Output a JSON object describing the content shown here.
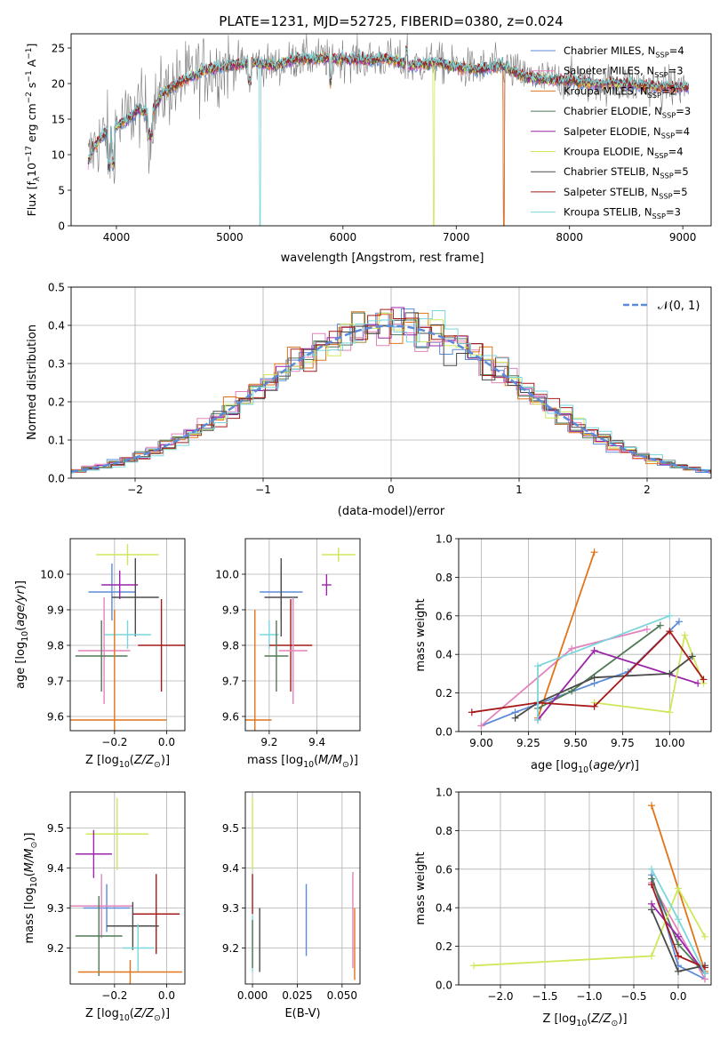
{
  "figure_title": "PLATE=1231, MJD=52725, FIBERID=0380, z=0.024",
  "colors": {
    "Chabrier MILES": "#5b8bd8",
    "Salpeter MILES": "#e383bc",
    "Kroupa MILES": "#e1741b",
    "Chabrier ELODIE": "#4e7a57",
    "Salpeter ELODIE": "#9b24a8",
    "Kroupa ELODIE": "#cde85a",
    "Chabrier STELIB": "#4b4b4b",
    "Salpeter STELIB": "#a61a1a",
    "Kroupa STELIB": "#7ad6dc"
  },
  "chart_data": [
    {
      "id": "spectrum",
      "type": "line",
      "title": "PLATE=1231, MJD=52725, FIBERID=0380, z=0.024",
      "xlabel": "wavelength [Angstrom, rest frame]",
      "ylabel": "Flux [f",
      "xlim": [
        3600,
        9250
      ],
      "ylim": [
        0,
        27
      ],
      "xticks": [
        "4000",
        "5000",
        "6000",
        "7000",
        "8000",
        "9000"
      ],
      "yticks": [
        "0",
        "5",
        "10",
        "15",
        "20",
        "25"
      ],
      "legend_position": "top-right",
      "legend": [
        {
          "name": "Chabrier MILES",
          "nssp": "4"
        },
        {
          "name": "Salpeter MILES",
          "nssp": "3"
        },
        {
          "name": "Kroupa MILES",
          "nssp": "2"
        },
        {
          "name": "Chabrier ELODIE",
          "nssp": "3"
        },
        {
          "name": "Salpeter ELODIE",
          "nssp": "4"
        },
        {
          "name": "Kroupa ELODIE",
          "nssp": "4"
        },
        {
          "name": "Chabrier STELIB",
          "nssp": "5"
        },
        {
          "name": "Salpeter STELIB",
          "nssp": "5"
        },
        {
          "name": "Kroupa STELIB",
          "nssp": "3"
        }
      ],
      "continuum": {
        "x": [
          3750,
          3800,
          3900,
          4000,
          4100,
          4200,
          4300,
          4400,
          4600,
          4800,
          5000,
          5200,
          5400,
          5600,
          5800,
          6000,
          6200,
          6400,
          6600,
          6800,
          7000,
          7200,
          7400,
          7600,
          7800,
          8000,
          8200,
          8400,
          8600,
          8800,
          9000
        ],
        "y": [
          9,
          11,
          13,
          14,
          15,
          16.5,
          15.5,
          18.5,
          20.5,
          22,
          22.5,
          23,
          22.5,
          23.5,
          23.5,
          23.5,
          23.3,
          23.5,
          22.5,
          23,
          22.3,
          22,
          22.5,
          21,
          20.5,
          20.5,
          20,
          20,
          19.8,
          19.5,
          19.5
        ]
      },
      "model_cutoffs": [
        {
          "name": "Chabrier MILES",
          "x": 7420
        },
        {
          "name": "Salpeter MILES",
          "x": 7420
        },
        {
          "name": "Kroupa MILES",
          "x": 7420
        },
        {
          "name": "Kroupa ELODIE",
          "x": 6800
        },
        {
          "name": "Kroupa STELIB",
          "x": 5270
        }
      ]
    },
    {
      "id": "residuals",
      "type": "line",
      "xlabel": "(data-model)/error",
      "ylabel": "Normed distribution",
      "xlim": [
        -2.5,
        2.5
      ],
      "ylim": [
        0,
        0.5
      ],
      "xticks": [
        "−2",
        "−1",
        "0",
        "1",
        "2"
      ],
      "yticks": [
        "0.0",
        "0.1",
        "0.2",
        "0.3",
        "0.4",
        "0.5"
      ],
      "grid": true,
      "legend_position": "top-right",
      "reference_curve": {
        "name": "𝒩(0, 1)",
        "mean": 0,
        "sigma": 1
      }
    },
    {
      "id": "age_vs_Z",
      "type": "scatter",
      "xlabel": "Z [log",
      "ylabel": "age  [log",
      "xlim": [
        -0.37,
        0.07
      ],
      "ylim": [
        9.56,
        10.1
      ],
      "xticks": [
        "−0.2",
        "0.0"
      ],
      "yticks": [
        "9.6",
        "9.7",
        "9.8",
        "9.9",
        "10.0"
      ],
      "grid": true,
      "points": [
        {
          "name": "Kroupa ELODIE",
          "x": -0.15,
          "xerr": 0.12,
          "y": 10.055,
          "yerr": 0.03
        },
        {
          "name": "Chabrier MILES",
          "x": -0.21,
          "xerr": 0.09,
          "y": 9.95,
          "yerr": 0.08
        },
        {
          "name": "Salpeter ELODIE",
          "x": -0.18,
          "xerr": 0.07,
          "y": 9.97,
          "yerr": 0.04
        },
        {
          "name": "Chabrier STELIB",
          "x": -0.12,
          "xerr": 0.09,
          "y": 9.935,
          "yerr": 0.11
        },
        {
          "name": "Kroupa STELIB",
          "x": -0.15,
          "xerr": 0.09,
          "y": 9.83,
          "yerr": 0.04
        },
        {
          "name": "Salpeter MILES",
          "x": -0.24,
          "xerr": 0.1,
          "y": 9.785,
          "yerr": 0.15
        },
        {
          "name": "Salpeter STELIB",
          "x": -0.02,
          "xerr": 0.09,
          "y": 9.8,
          "yerr": 0.13
        },
        {
          "name": "Chabrier ELODIE",
          "x": -0.25,
          "xerr": 0.1,
          "y": 9.77,
          "yerr": 0.1
        },
        {
          "name": "Kroupa MILES",
          "x": -0.2,
          "xerr": 0.2,
          "y": 9.59,
          "yerr": 0.31
        }
      ]
    },
    {
      "id": "age_vs_mass",
      "type": "scatter",
      "xlabel": "mass [log",
      "ylabel": "",
      "xlim": [
        9.1,
        9.58
      ],
      "ylim": [
        9.56,
        10.1
      ],
      "xticks": [
        "9.2",
        "9.4"
      ],
      "yticks": [
        "9.6",
        "9.7",
        "9.8",
        "9.9",
        "10.0"
      ],
      "grid": true,
      "points": [
        {
          "name": "Kroupa ELODIE",
          "x": 9.49,
          "xerr": 0.07,
          "y": 10.055,
          "yerr": 0.02
        },
        {
          "name": "Salpeter ELODIE",
          "x": 9.44,
          "xerr": 0.02,
          "y": 9.97,
          "yerr": 0.03
        },
        {
          "name": "Chabrier MILES",
          "x": 9.25,
          "xerr": 0.09,
          "y": 9.95,
          "yerr": 0.08
        },
        {
          "name": "Chabrier STELIB",
          "x": 9.25,
          "xerr": 0.07,
          "y": 9.935,
          "yerr": 0.11
        },
        {
          "name": "Kroupa STELIB",
          "x": 9.2,
          "xerr": 0.04,
          "y": 9.83,
          "yerr": 0.04
        },
        {
          "name": "Salpeter STELIB",
          "x": 9.29,
          "xerr": 0.09,
          "y": 9.8,
          "yerr": 0.13
        },
        {
          "name": "Salpeter MILES",
          "x": 9.3,
          "xerr": 0.06,
          "y": 9.785,
          "yerr": 0.15
        },
        {
          "name": "Chabrier ELODIE",
          "x": 9.23,
          "xerr": 0.05,
          "y": 9.77,
          "yerr": 0.1
        },
        {
          "name": "Kroupa MILES",
          "x": 9.14,
          "xerr": 0.07,
          "y": 9.59,
          "yerr": 0.31
        }
      ]
    },
    {
      "id": "weight_vs_age",
      "type": "line",
      "xlabel": "age  [log",
      "ylabel": "mass weight",
      "xlim": [
        8.88,
        10.22
      ],
      "ylim": [
        0,
        1
      ],
      "xticks": [
        "9.00",
        "9.25",
        "9.50",
        "9.75",
        "10.00"
      ],
      "yticks": [
        "0.0",
        "0.2",
        "0.4",
        "0.6",
        "0.8",
        "1.0"
      ],
      "grid": true,
      "series": [
        {
          "name": "Chabrier MILES",
          "x": [
            9.0,
            9.18,
            9.6,
            9.78,
            10.05
          ],
          "y": [
            0.03,
            0.1,
            0.25,
            0.31,
            0.57
          ]
        },
        {
          "name": "Salpeter MILES",
          "x": [
            9.0,
            9.48,
            9.88
          ],
          "y": [
            0.03,
            0.43,
            0.53
          ]
        },
        {
          "name": "Kroupa MILES",
          "x": [
            9.3,
            9.6
          ],
          "y": [
            0.07,
            0.93
          ]
        },
        {
          "name": "Chabrier ELODIE",
          "x": [
            9.3,
            9.48,
            9.95
          ],
          "y": [
            0.12,
            0.21,
            0.55
          ]
        },
        {
          "name": "Salpeter ELODIE",
          "x": [
            9.3,
            9.6,
            10.15
          ],
          "y": [
            0.06,
            0.42,
            0.25
          ]
        },
        {
          "name": "Kroupa ELODIE",
          "x": [
            9.6,
            10.0,
            10.08,
            10.18
          ],
          "y": [
            0.15,
            0.1,
            0.5,
            0.25
          ]
        },
        {
          "name": "Chabrier STELIB",
          "x": [
            9.18,
            9.3,
            9.6,
            10.0,
            10.12
          ],
          "y": [
            0.07,
            0.15,
            0.28,
            0.3,
            0.39
          ]
        },
        {
          "name": "Salpeter STELIB",
          "x": [
            8.95,
            9.3,
            9.6,
            10.0,
            10.18
          ],
          "y": [
            0.1,
            0.15,
            0.13,
            0.52,
            0.27
          ]
        },
        {
          "name": "Kroupa STELIB",
          "x": [
            9.3,
            9.3,
            10.0
          ],
          "y": [
            0.06,
            0.34,
            0.6
          ]
        }
      ]
    },
    {
      "id": "mass_vs_Z",
      "type": "scatter",
      "xlabel": "Z [log",
      "ylabel": "mass [log",
      "xlim": [
        -0.37,
        0.07
      ],
      "ylim": [
        9.11,
        9.59
      ],
      "xticks": [
        "−0.2",
        "0.0"
      ],
      "yticks": [
        "9.2",
        "9.3",
        "9.4",
        "9.5"
      ],
      "grid": true,
      "points": [
        {
          "name": "Kroupa ELODIE",
          "x": -0.19,
          "xerr": 0.12,
          "y": 9.485,
          "yerr": 0.09
        },
        {
          "name": "Salpeter ELODIE",
          "x": -0.28,
          "xerr": 0.07,
          "y": 9.435,
          "yerr": 0.06
        },
        {
          "name": "Chabrier MILES",
          "x": -0.23,
          "xerr": 0.09,
          "y": 9.3,
          "yerr": 0.06
        },
        {
          "name": "Salpeter MILES",
          "x": -0.25,
          "xerr": 0.12,
          "y": 9.305,
          "yerr": 0.08
        },
        {
          "name": "Salpeter STELIB",
          "x": -0.04,
          "xerr": 0.09,
          "y": 9.285,
          "yerr": 0.1
        },
        {
          "name": "Chabrier STELIB",
          "x": -0.13,
          "xerr": 0.1,
          "y": 9.255,
          "yerr": 0.06
        },
        {
          "name": "Chabrier ELODIE",
          "x": -0.26,
          "xerr": 0.09,
          "y": 9.23,
          "yerr": 0.1
        },
        {
          "name": "Kroupa STELIB",
          "x": -0.11,
          "xerr": 0.06,
          "y": 9.2,
          "yerr": 0.06
        },
        {
          "name": "Kroupa MILES",
          "x": -0.14,
          "xerr": 0.2,
          "y": 9.14,
          "yerr": 0.03
        }
      ]
    },
    {
      "id": "mass_vs_ebv",
      "type": "scatter",
      "xlabel": "E(B-V)",
      "ylabel": "",
      "xlim": [
        -0.004,
        0.06
      ],
      "ylim": [
        9.11,
        9.59
      ],
      "xticks": [
        "0.000",
        "0.025",
        "0.050"
      ],
      "yticks": [
        "9.2",
        "9.3",
        "9.4",
        "9.5"
      ],
      "grid": true,
      "points": [
        {
          "name": "Kroupa ELODIE",
          "x": 0.0,
          "y": 9.485,
          "yerr": 0.09
        },
        {
          "name": "Salpeter STELIB",
          "x": 0.0,
          "y": 9.335,
          "yerr": 0.05
        },
        {
          "name": "Kroupa STELIB",
          "x": 0.0,
          "y": 9.21,
          "yerr": 0.07
        },
        {
          "name": "Chabrier ELODIE",
          "x": 0.0,
          "y": 9.21,
          "yerr": 0.06
        },
        {
          "name": "Chabrier STELIB",
          "x": 0.004,
          "y": 9.22,
          "yerr": 0.08
        },
        {
          "name": "Chabrier MILES",
          "x": 0.03,
          "y": 9.27,
          "yerr": 0.09
        },
        {
          "name": "Salpeter MILES",
          "x": 0.056,
          "y": 9.27,
          "yerr": 0.12
        },
        {
          "name": "Kroupa MILES",
          "x": 0.057,
          "y": 9.21,
          "yerr": 0.09
        }
      ]
    },
    {
      "id": "weight_vs_Z",
      "type": "line",
      "xlabel": "Z [log",
      "ylabel": "mass weight",
      "xlim": [
        -2.47,
        0.37
      ],
      "ylim": [
        0,
        1
      ],
      "xticks": [
        "−2.0",
        "−1.5",
        "−1.0",
        "−0.5",
        "0.0"
      ],
      "yticks": [
        "0.0",
        "0.2",
        "0.4",
        "0.6",
        "0.8",
        "1.0"
      ],
      "grid": true,
      "series": [
        {
          "name": "Chabrier MILES",
          "x": [
            -0.3,
            0.0,
            0.3
          ],
          "y": [
            0.57,
            0.1,
            0.03
          ]
        },
        {
          "name": "Salpeter MILES",
          "x": [
            -0.3,
            0.3
          ],
          "y": [
            0.53,
            0.03
          ]
        },
        {
          "name": "Kroupa MILES",
          "x": [
            -0.3,
            0.3
          ],
          "y": [
            0.93,
            0.07
          ]
        },
        {
          "name": "Chabrier ELODIE",
          "x": [
            -0.3,
            0.0,
            0.3
          ],
          "y": [
            0.55,
            0.21,
            0.06
          ]
        },
        {
          "name": "Salpeter ELODIE",
          "x": [
            -0.3,
            0.0,
            0.3
          ],
          "y": [
            0.42,
            0.25,
            0.06
          ]
        },
        {
          "name": "Kroupa ELODIE",
          "x": [
            -2.3,
            -0.3,
            0.0,
            0.3
          ],
          "y": [
            0.1,
            0.15,
            0.5,
            0.25
          ]
        },
        {
          "name": "Chabrier STELIB",
          "x": [
            -0.3,
            0.0,
            0.3
          ],
          "y": [
            0.39,
            0.07,
            0.1
          ]
        },
        {
          "name": "Salpeter STELIB",
          "x": [
            -0.3,
            0.0,
            0.3
          ],
          "y": [
            0.52,
            0.15,
            0.09
          ]
        },
        {
          "name": "Kroupa STELIB",
          "x": [
            -0.3,
            0.0,
            0.3
          ],
          "y": [
            0.6,
            0.34,
            0.06
          ]
        }
      ]
    }
  ]
}
